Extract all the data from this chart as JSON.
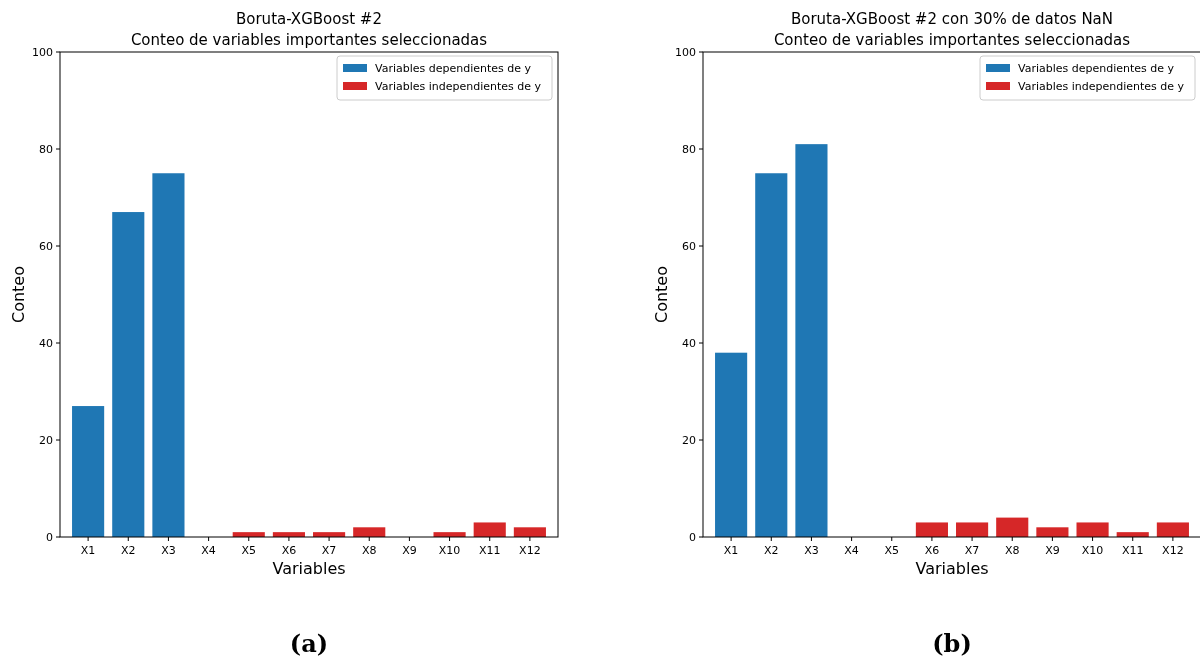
{
  "chart_data": [
    {
      "type": "bar",
      "title": "Boruta-XGBoost #2",
      "subtitle": "Conteo de variables importantes seleccionadas",
      "xlabel": "Variables",
      "ylabel": "Conteo",
      "categories": [
        "X1",
        "X2",
        "X3",
        "X4",
        "X5",
        "X6",
        "X7",
        "X8",
        "X9",
        "X10",
        "X11",
        "X12"
      ],
      "series": [
        {
          "name": "Variables dependientes de y",
          "color": "#1f77b4",
          "values": [
            27,
            67,
            75,
            null,
            null,
            null,
            null,
            null,
            null,
            null,
            null,
            null
          ]
        },
        {
          "name": "Variables independientes de y",
          "color": "#d62728",
          "values": [
            null,
            null,
            null,
            0,
            1,
            1,
            1,
            2,
            0,
            1,
            3,
            2
          ]
        }
      ],
      "ylim": [
        0,
        100
      ],
      "yticks": [
        0,
        20,
        40,
        60,
        80,
        100
      ],
      "grid": false,
      "legend": "top right",
      "annotations": [
        "(a)"
      ]
    },
    {
      "type": "bar",
      "title": "Boruta-XGBoost #2 con 30% de datos NaN",
      "subtitle": "Conteo de variables importantes seleccionadas",
      "xlabel": "Variables",
      "ylabel": "Conteo",
      "categories": [
        "X1",
        "X2",
        "X3",
        "X4",
        "X5",
        "X6",
        "X7",
        "X8",
        "X9",
        "X10",
        "X11",
        "X12"
      ],
      "series": [
        {
          "name": "Variables dependientes de y",
          "color": "#1f77b4",
          "values": [
            38,
            75,
            81,
            null,
            null,
            null,
            null,
            null,
            null,
            null,
            null,
            null
          ]
        },
        {
          "name": "Variables independientes de y",
          "color": "#d62728",
          "values": [
            null,
            null,
            null,
            0,
            0,
            3,
            3,
            4,
            2,
            3,
            1,
            3
          ]
        }
      ],
      "ylim": [
        0,
        100
      ],
      "yticks": [
        0,
        20,
        40,
        60,
        80,
        100
      ],
      "grid": false,
      "legend": "top right",
      "annotations": [
        "(b)"
      ]
    }
  ]
}
